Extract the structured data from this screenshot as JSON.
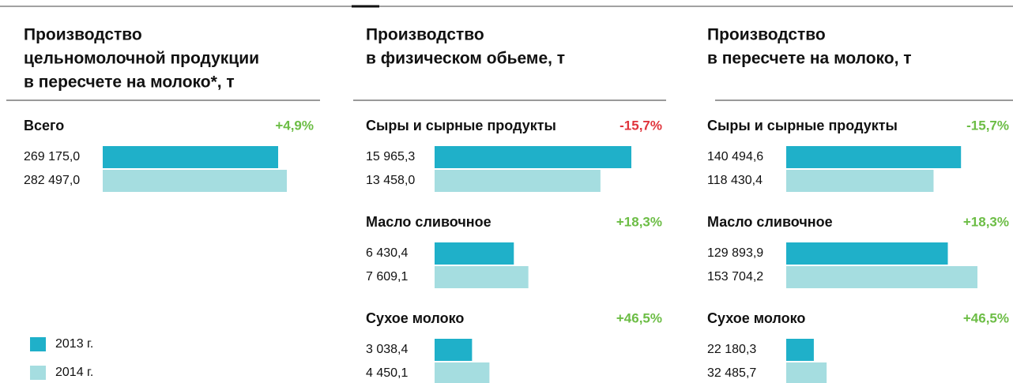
{
  "chart_data": [
    {
      "type": "bar",
      "title": [
        "Производство",
        "цельномолочной продукции",
        "в пересчете на молоко*, т"
      ],
      "categories": [
        "Всего"
      ],
      "change_labels": [
        "+4,9%"
      ],
      "change_colors": [
        "#6cbd45"
      ],
      "series": [
        {
          "name": "2013 г.",
          "color": "#1fb0c9",
          "values": [
            269175.0
          ],
          "value_labels": [
            "269 175,0"
          ]
        },
        {
          "name": "2014 г.",
          "color": "#a5dde0",
          "values": [
            282497.0
          ],
          "value_labels": [
            "282 497,0"
          ]
        }
      ]
    },
    {
      "type": "bar",
      "title": [
        "Производство",
        "в физическом обьеме, т"
      ],
      "categories": [
        "Сыры и сырные продукты",
        "Масло сливочное",
        "Сухое молоко"
      ],
      "change_labels": [
        "-15,7%",
        "+18,3%",
        "+46,5%"
      ],
      "change_colors": [
        "#e0343c",
        "#6cbd45",
        "#6cbd45"
      ],
      "series": [
        {
          "color": "#1fb0c9",
          "values": [
            15965.3,
            6430.4,
            3038.4
          ],
          "value_labels": [
            "15 965,3",
            "6 430,4",
            "3 038,4"
          ]
        },
        {
          "color": "#a5dde0",
          "values": [
            13458.0,
            7609.1,
            4450.1
          ],
          "value_labels": [
            "13 458,0",
            "7 609,1",
            "4 450,1"
          ]
        }
      ]
    },
    {
      "type": "bar",
      "title": [
        "Производство",
        "в пересчете на молоко, т"
      ],
      "categories": [
        "Сыры и сырные продукты",
        "Масло сливочное",
        "Сухое молоко"
      ],
      "change_labels": [
        "-15,7%",
        "+18,3%",
        "+46,5%"
      ],
      "change_colors": [
        "#6cbd45",
        "#6cbd45",
        "#6cbd45"
      ],
      "series": [
        {
          "color": "#1fb0c9",
          "values": [
            140494.6,
            129893.9,
            22180.3
          ],
          "value_labels": [
            "140 494,6",
            "129 893,9",
            "22 180,3"
          ]
        },
        {
          "color": "#a5dde0",
          "values": [
            118430.4,
            153704.2,
            32485.7
          ],
          "value_labels": [
            "118 430,4",
            "153 704,2",
            "32 485,7"
          ]
        }
      ]
    }
  ]
}
